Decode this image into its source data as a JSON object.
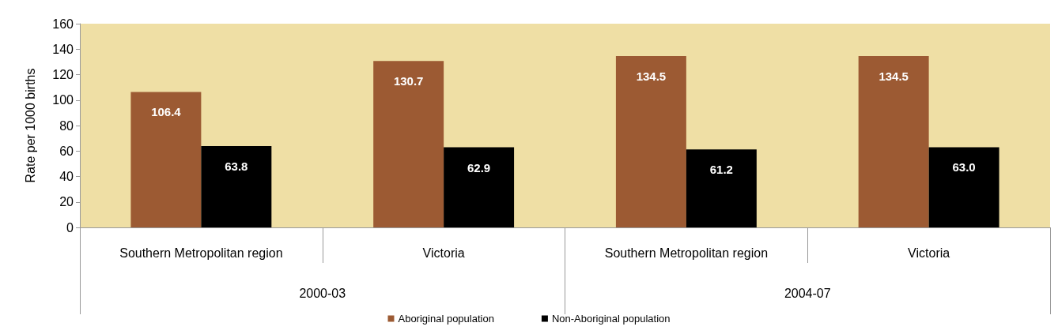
{
  "chart_data": {
    "type": "bar",
    "ylabel": "Rate per 1000 births",
    "categories": [
      "Southern Metropolitan region",
      "Victoria",
      "Southern Metropolitan region",
      "Victoria"
    ],
    "annotations": [
      "2000-03",
      "2004-07"
    ],
    "series": [
      {
        "name": "Aboriginal population",
        "color": "#9c5a33",
        "values": [
          106.4,
          130.7,
          134.5,
          134.5
        ],
        "value_labels": [
          "106.4",
          "130.7",
          "134.5",
          "134.5"
        ]
      },
      {
        "name": "Non-Aboriginal population",
        "color": "#000000",
        "values": [
          63.8,
          62.9,
          61.2,
          63.0
        ],
        "value_labels": [
          "63.8",
          "62.9",
          "61.2",
          "63.0"
        ]
      }
    ],
    "ylim": [
      0,
      160
    ],
    "yticks": [
      0,
      20,
      40,
      60,
      80,
      100,
      120,
      140,
      160
    ],
    "grid": false,
    "legend": "bottom"
  }
}
